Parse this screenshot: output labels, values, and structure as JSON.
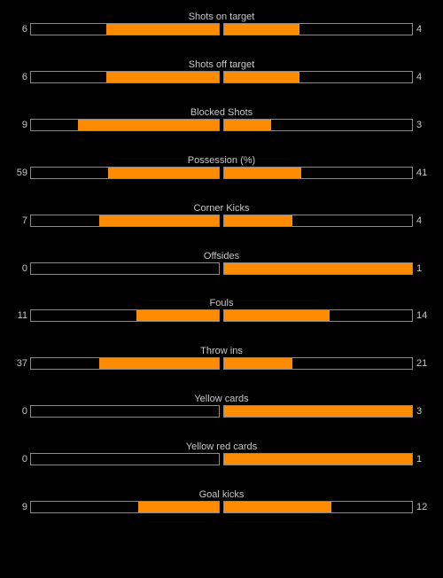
{
  "colors": {
    "background": "#000000",
    "bar_fill": "#ff8c00",
    "bar_border": "#8a8a8a",
    "text": "#c8c8c8"
  },
  "stats": [
    {
      "label": "Shots on target",
      "home": "6",
      "away": "4",
      "home_share": 0.6,
      "away_share": 0.4
    },
    {
      "label": "Shots off target",
      "home": "6",
      "away": "4",
      "home_share": 0.6,
      "away_share": 0.4
    },
    {
      "label": "Blocked Shots",
      "home": "9",
      "away": "3",
      "home_share": 0.75,
      "away_share": 0.25
    },
    {
      "label": "Possession (%)",
      "home": "59",
      "away": "41",
      "home_share": 0.59,
      "away_share": 0.41
    },
    {
      "label": "Corner Kicks",
      "home": "7",
      "away": "4",
      "home_share": 0.6364,
      "away_share": 0.3636
    },
    {
      "label": "Offsides",
      "home": "0",
      "away": "1",
      "home_share": 0,
      "away_share": 1
    },
    {
      "label": "Fouls",
      "home": "11",
      "away": "14",
      "home_share": 0.44,
      "away_share": 0.56
    },
    {
      "label": "Throw ins",
      "home": "37",
      "away": "21",
      "home_share": 0.6379,
      "away_share": 0.3621
    },
    {
      "label": "Yellow cards",
      "home": "0",
      "away": "3",
      "home_share": 0,
      "away_share": 1
    },
    {
      "label": "Yellow red cards",
      "home": "0",
      "away": "1",
      "home_share": 0,
      "away_share": 1
    },
    {
      "label": "Goal kicks",
      "home": "9",
      "away": "12",
      "home_share": 0.4286,
      "away_share": 0.5714
    }
  ]
}
